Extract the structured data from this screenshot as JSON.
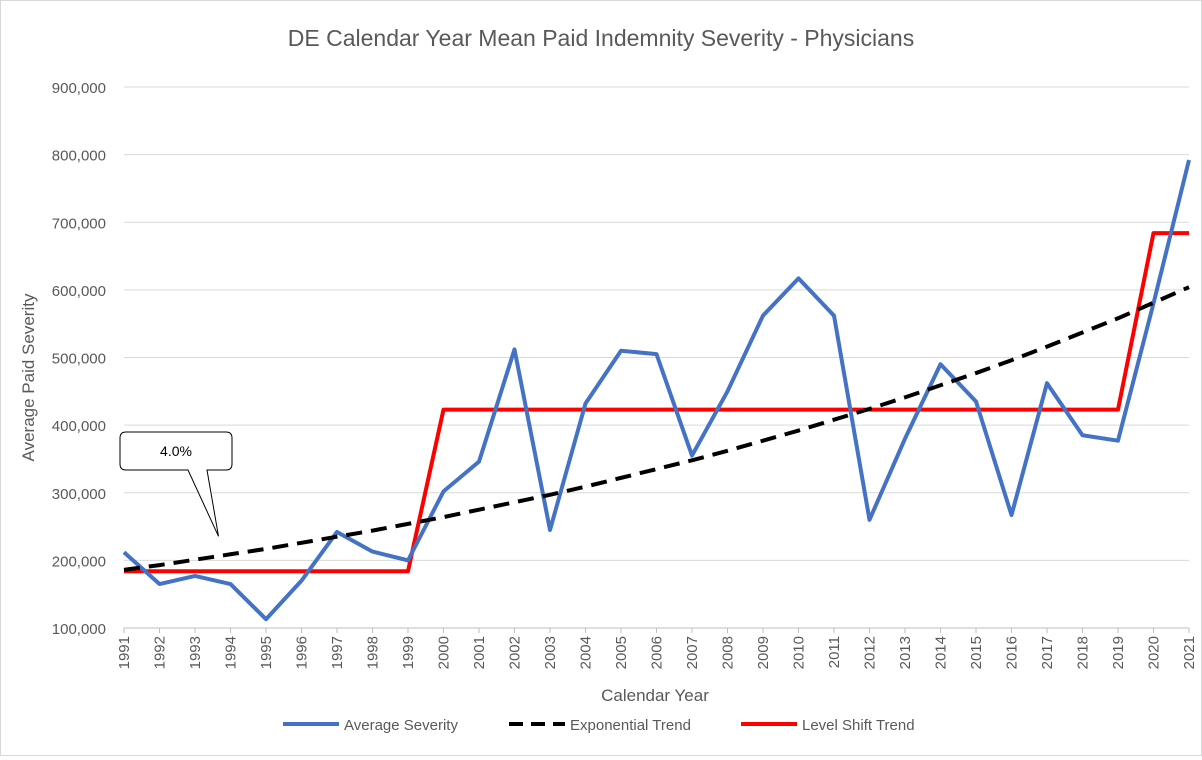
{
  "chart_data": {
    "type": "line",
    "title": "DE Calendar Year Mean Paid Indemnity Severity - Physicians",
    "xlabel": "Calendar Year",
    "ylabel": "Average Paid Severity",
    "ylim": [
      100000,
      900000
    ],
    "y_ticks": [
      100000,
      200000,
      300000,
      400000,
      500000,
      600000,
      700000,
      800000,
      900000
    ],
    "y_tick_labels": [
      "100,000",
      "200,000",
      "300,000",
      "400,000",
      "500,000",
      "600,000",
      "700,000",
      "800,000",
      "900,000"
    ],
    "gridlines": true,
    "legend_position": "bottom",
    "categories": [
      "1991",
      "1992",
      "1993",
      "1994",
      "1995",
      "1996",
      "1997",
      "1998",
      "1999",
      "2000",
      "2001",
      "2002",
      "2003",
      "2004",
      "2005",
      "2006",
      "2007",
      "2008",
      "2009",
      "2010",
      "2011",
      "2012",
      "2013",
      "2014",
      "2015",
      "2016",
      "2017",
      "2018",
      "2019",
      "2020",
      "2021"
    ],
    "series": [
      {
        "name": "Average Severity",
        "style": "solid",
        "color": "#4472C4",
        "values": [
          212000,
          165000,
          177000,
          165000,
          113000,
          170000,
          242000,
          213000,
          200000,
          302000,
          346000,
          512000,
          245000,
          432000,
          510000,
          505000,
          355000,
          450000,
          562000,
          617000,
          562000,
          260000,
          380000,
          490000,
          435000,
          267000,
          462000,
          385000,
          377000,
          580000,
          792000
        ]
      },
      {
        "name": "Exponential Trend",
        "style": "dashed",
        "color": "#000000",
        "values": [
          186000,
          193000,
          201000,
          209000,
          217000,
          226000,
          235000,
          244000,
          254000,
          264000,
          275000,
          286000,
          297000,
          309000,
          322000,
          335000,
          348000,
          362000,
          377000,
          392000,
          408000,
          424000,
          441000,
          459000,
          477000,
          496000,
          516000,
          537000,
          558000,
          581000,
          604000
        ]
      },
      {
        "name": "Level Shift Trend",
        "style": "solid",
        "color": "#FF0000",
        "values": [
          184000,
          184000,
          184000,
          184000,
          184000,
          184000,
          184000,
          184000,
          184000,
          423000,
          423000,
          423000,
          423000,
          423000,
          423000,
          423000,
          423000,
          423000,
          423000,
          423000,
          423000,
          423000,
          423000,
          423000,
          423000,
          423000,
          423000,
          423000,
          423000,
          684000,
          684000
        ]
      }
    ],
    "annotations": [
      {
        "text": "4.0%",
        "points_to_category": "1994",
        "target_series": "Exponential Trend"
      }
    ]
  }
}
